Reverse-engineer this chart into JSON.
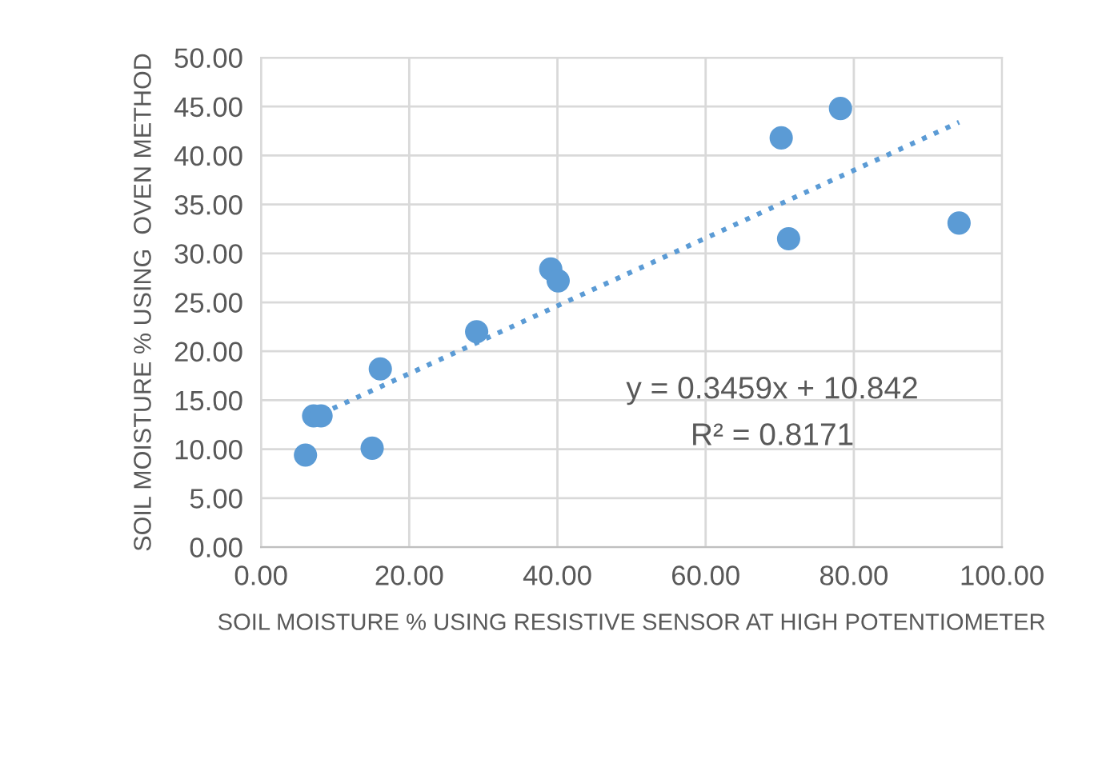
{
  "chart_data": {
    "type": "scatter",
    "xlabel": "SOIL MOISTURE % USING RESISTIVE SENSOR AT HIGH POTENTIOMETER",
    "ylabel": "SOIL MOISTURE % USING  OVEN METHOD",
    "x": [
      6.0,
      15.0,
      7.1,
      8.1,
      16.1,
      29.1,
      39.1,
      40.1,
      70.2,
      78.2,
      71.2,
      94.2
    ],
    "series": [
      {
        "color": "#5b9bd5",
        "marker": "circle",
        "values": [
          9.4,
          10.1,
          13.4,
          13.4,
          18.2,
          22.0,
          28.4,
          27.2,
          41.8,
          44.8,
          31.5,
          33.1
        ]
      },
      {
        "type": "line",
        "color": "#5b9bd5",
        "line_style": "dotted",
        "x": [
          8.1,
          94.2
        ],
        "values": [
          13.6,
          43.4
        ]
      }
    ],
    "annotations": [
      "y = 0.3459x + 10.842",
      "R² = 0.8171"
    ],
    "xlim": [
      0,
      100
    ],
    "xticks": [
      {
        "value": 0,
        "label": "0.00"
      },
      {
        "value": 20,
        "label": "20.00"
      },
      {
        "value": 40,
        "label": "40.00"
      },
      {
        "value": 60,
        "label": "60.00"
      },
      {
        "value": 80,
        "label": "80.00"
      },
      {
        "value": 100,
        "label": "100.00"
      }
    ],
    "ylim": [
      0,
      50
    ],
    "yticks": [
      {
        "value": 0,
        "label": "0.00"
      },
      {
        "value": 5,
        "label": "5.00"
      },
      {
        "value": 10,
        "label": "10.00"
      },
      {
        "value": 15,
        "label": "15.00"
      },
      {
        "value": 20,
        "label": "20.00"
      },
      {
        "value": 25,
        "label": "25.00"
      },
      {
        "value": 30,
        "label": "30.00"
      },
      {
        "value": 35,
        "label": "35.00"
      },
      {
        "value": 40,
        "label": "40.00"
      },
      {
        "value": 45,
        "label": "45.00"
      },
      {
        "value": 50,
        "label": "50.00"
      }
    ],
    "grid": true,
    "legend": false
  }
}
